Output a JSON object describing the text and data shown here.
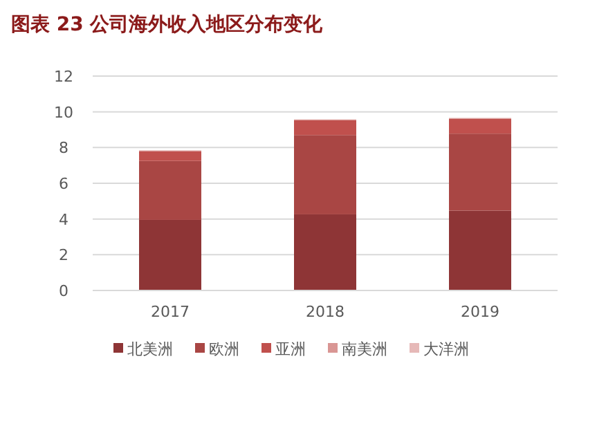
{
  "chart_data": {
    "type": "bar",
    "title": "图表 23 公司海外收入地区分布变化",
    "categories": [
      "2017",
      "2018",
      "2019"
    ],
    "stacked": true,
    "legend": "bottom",
    "grid": "y",
    "ylim": [
      0,
      12
    ],
    "yticks": [
      0,
      2,
      4,
      6,
      8,
      10,
      12
    ],
    "series": [
      {
        "name": "北美洲",
        "color": "#8e3536",
        "values": [
          3.95,
          4.26,
          4.47
        ]
      },
      {
        "name": "欧洲",
        "color": "#a94644",
        "values": [
          3.3,
          4.44,
          4.31
        ]
      },
      {
        "name": "亚洲",
        "color": "#c0504d",
        "values": [
          0.55,
          0.83,
          0.83
        ]
      },
      {
        "name": "南美洲",
        "color": "#d99694",
        "values": [
          0.03,
          0.03,
          0.03
        ]
      },
      {
        "name": "大洋洲",
        "color": "#e6b9b8",
        "values": [
          0.02,
          0.02,
          0.02
        ]
      }
    ]
  }
}
